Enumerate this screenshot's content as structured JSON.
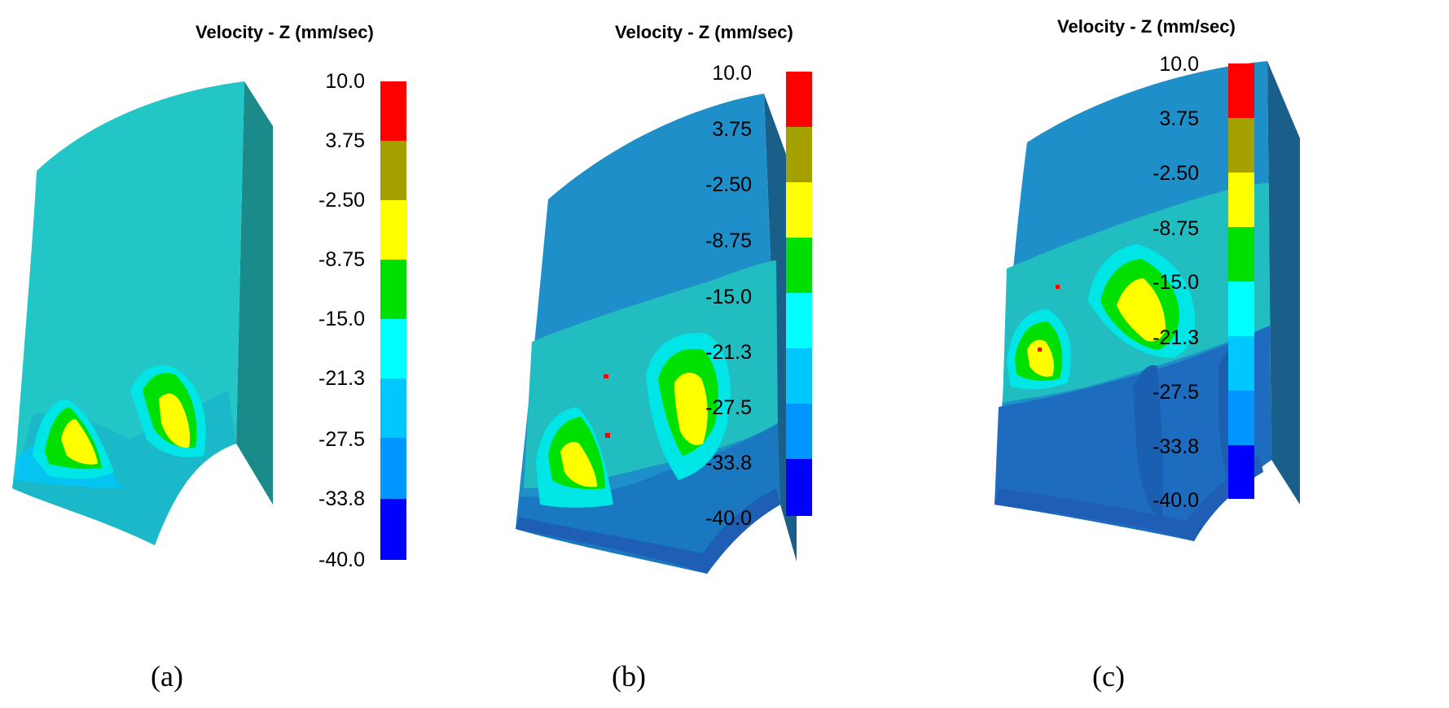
{
  "legend": {
    "title": "Velocity - Z (mm/sec)",
    "ticks": [
      "10.0",
      "3.75",
      "-2.50",
      "-8.75",
      "-15.0",
      "-21.3",
      "-27.5",
      "-33.8",
      "-40.0"
    ],
    "colors": [
      "#ff0000",
      "#a3a000",
      "#ffff00",
      "#00e000",
      "#00ffff",
      "#00c8ff",
      "#0096ff",
      "#0064ff",
      "#0000ff"
    ]
  },
  "panels": [
    {
      "caption": "(a)"
    },
    {
      "caption": "(b)"
    },
    {
      "caption": "(c)"
    }
  ]
}
